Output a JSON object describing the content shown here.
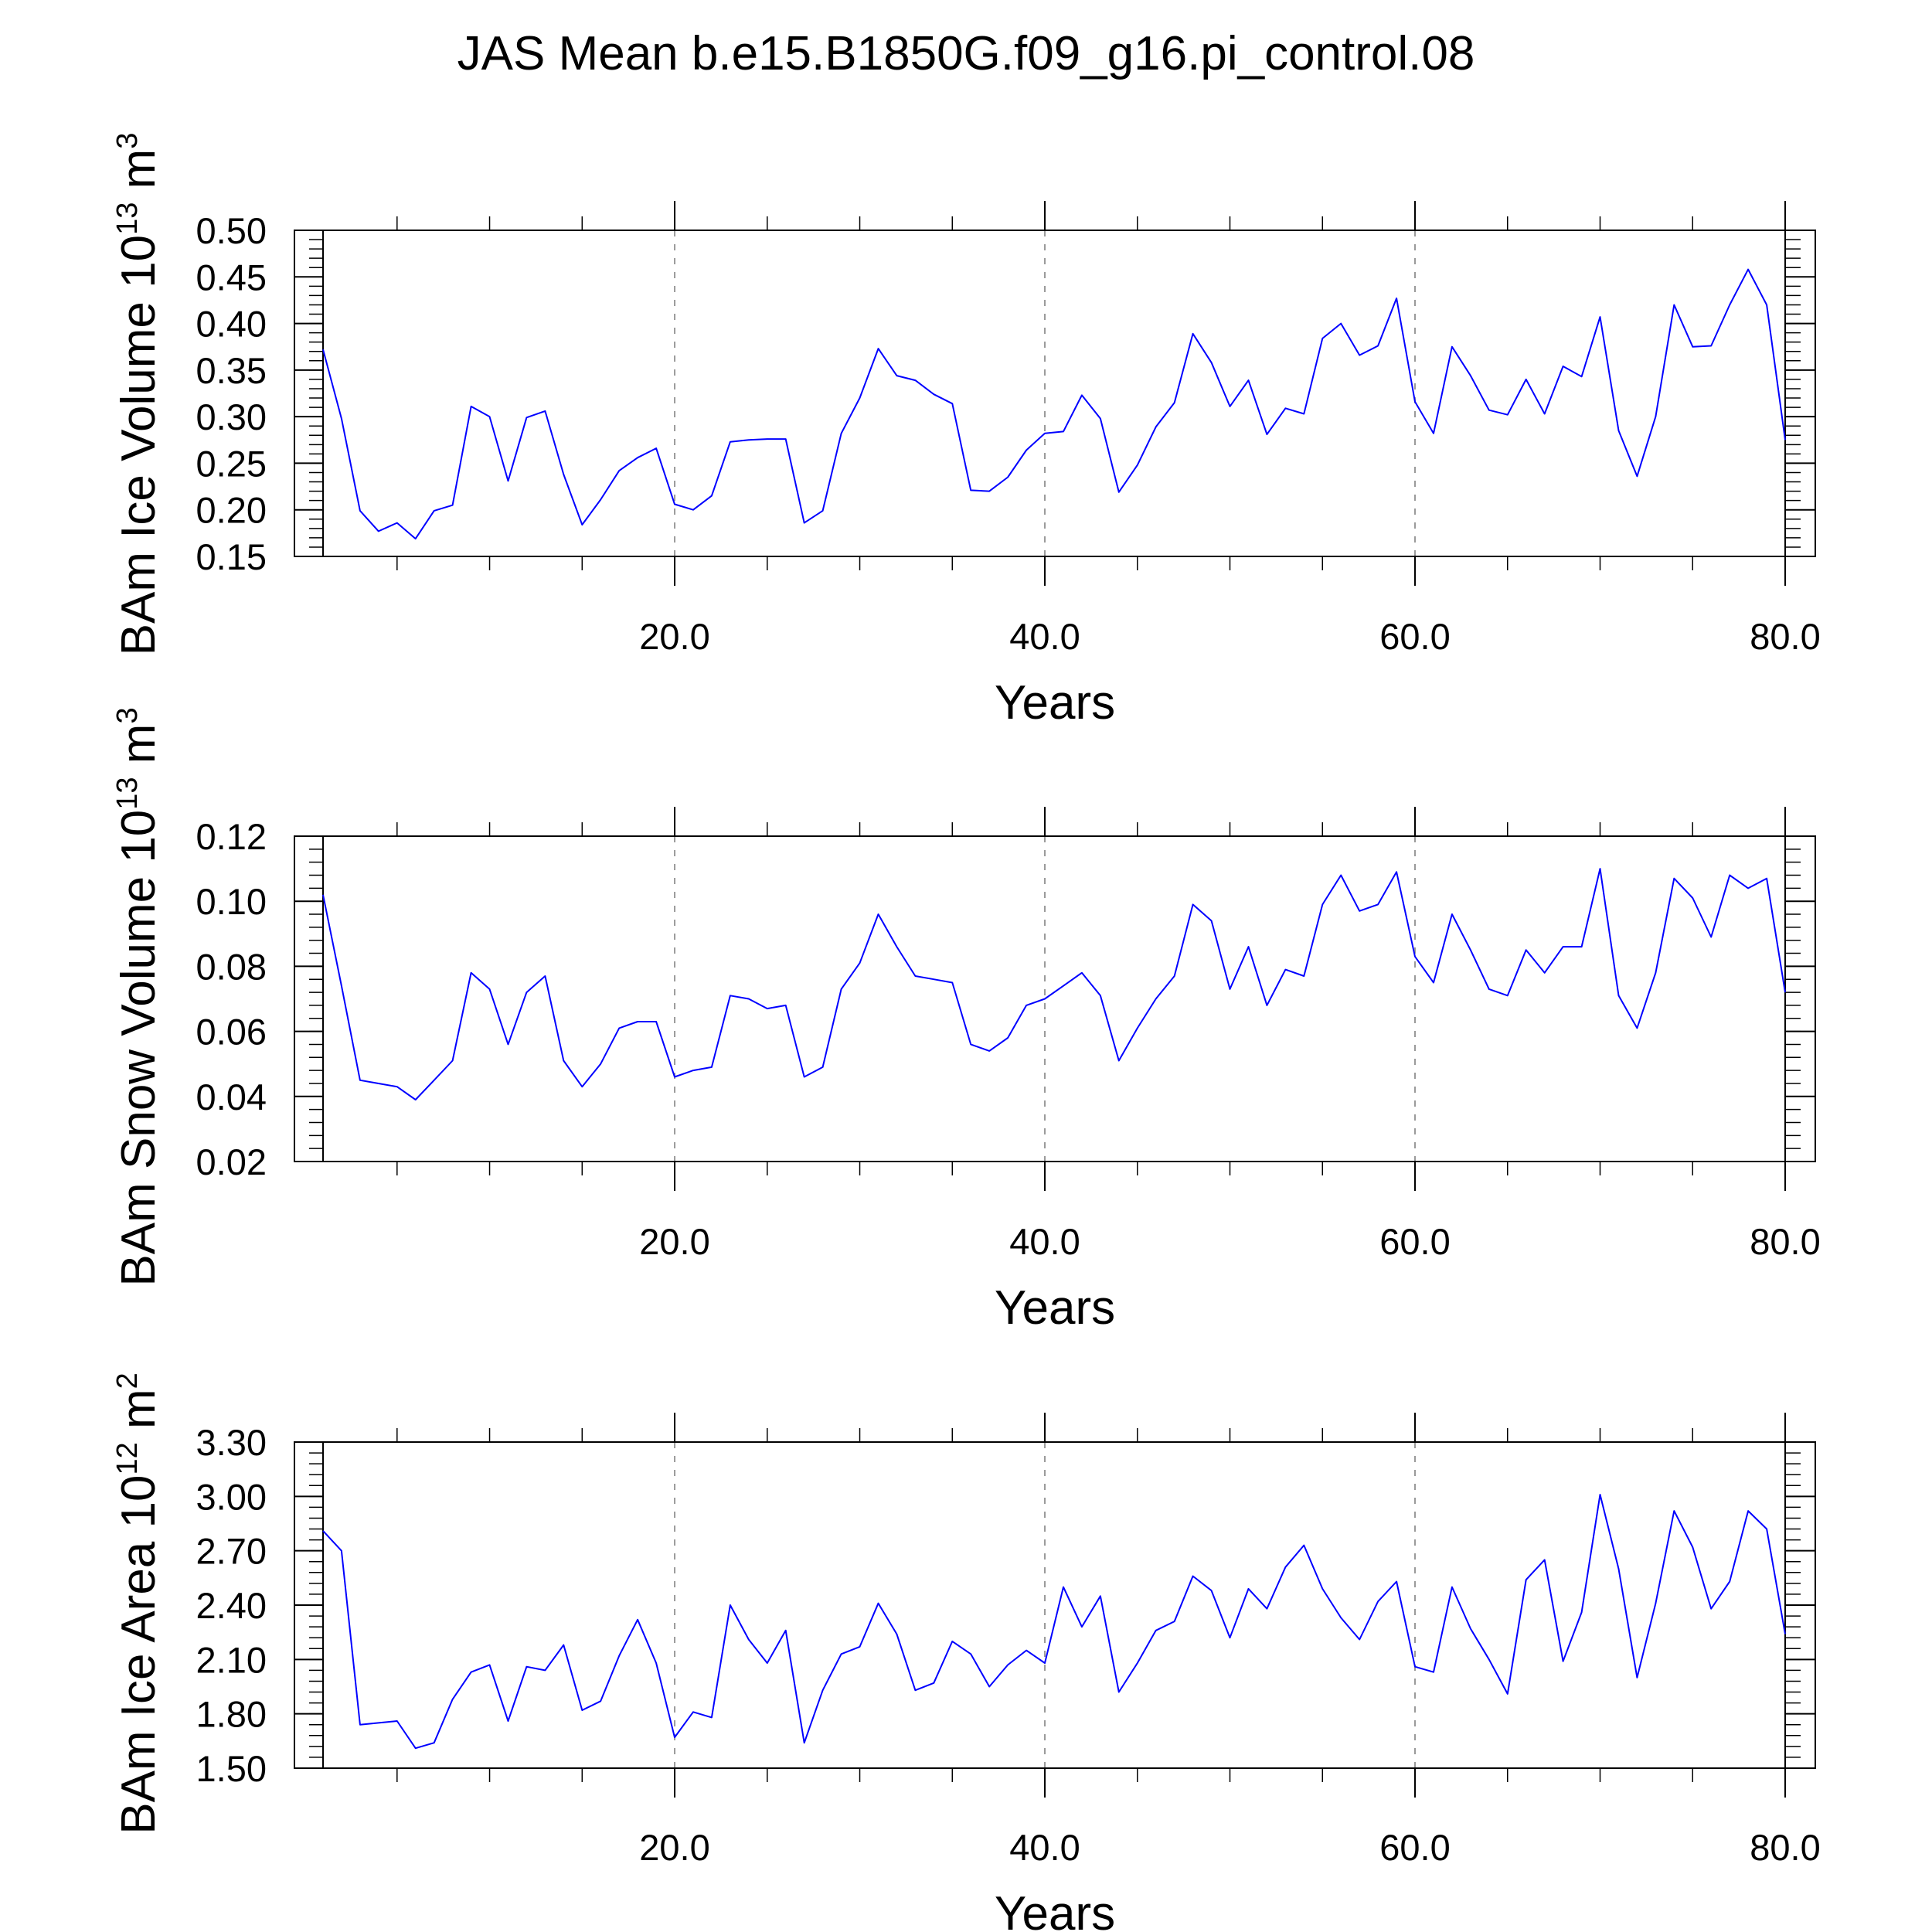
{
  "title": "JAS Mean b.e15.B1850G.f09_g16.pi_control.08",
  "colors": {
    "series": "#0000ff",
    "axis": "#000000",
    "grid": "#9a9a9a"
  },
  "chart_data": [
    {
      "type": "line",
      "ylabel": "BAm Ice Volume 10",
      "ylabel_exp": "13",
      "ylabel_unit": "m",
      "ylabel_unit_exp": "3",
      "xlabel": "Years",
      "xlim": [
        0,
        80
      ],
      "ylim": [
        0.15,
        0.5
      ],
      "ymajor": [
        0.15,
        0.2,
        0.25,
        0.3,
        0.35,
        0.4,
        0.45,
        0.5
      ],
      "ymajor_labels": [
        "0.15",
        "0.20",
        "0.25",
        "0.30",
        "0.35",
        "0.40",
        "0.45",
        "0.50"
      ],
      "yminor_step": 0.01,
      "xmajor": [
        20,
        40,
        60,
        80
      ],
      "xmajor_labels": [
        "20.0",
        "40.0",
        "60.0",
        "80.0"
      ],
      "xminor": [
        5,
        10,
        15,
        25,
        30,
        35,
        45,
        50,
        55,
        65,
        70,
        75
      ],
      "grid_x": [
        20,
        40,
        60
      ],
      "x": [
        1,
        2,
        3,
        4,
        5,
        6,
        7,
        8,
        9,
        10,
        11,
        12,
        13,
        14,
        15,
        16,
        17,
        18,
        19,
        20,
        21,
        22,
        23,
        24,
        25,
        26,
        27,
        28,
        29,
        30,
        31,
        32,
        33,
        34,
        35,
        36,
        37,
        38,
        39,
        40,
        41,
        42,
        43,
        44,
        45,
        46,
        47,
        48,
        49,
        50,
        51,
        52,
        53,
        54,
        55,
        56,
        57,
        58,
        59,
        60,
        61,
        62,
        63,
        64,
        65,
        66,
        67,
        68,
        69,
        70,
        71,
        72,
        73,
        74,
        75,
        76,
        77,
        78,
        79,
        80
      ],
      "values": [
        0.372,
        0.298,
        0.199,
        0.177,
        0.186,
        0.169,
        0.199,
        0.205,
        0.311,
        0.3,
        0.231,
        0.299,
        0.306,
        0.238,
        0.184,
        0.211,
        0.242,
        0.256,
        0.266,
        0.206,
        0.2,
        0.215,
        0.273,
        0.275,
        0.276,
        0.276,
        0.186,
        0.199,
        0.282,
        0.32,
        0.373,
        0.344,
        0.339,
        0.324,
        0.314,
        0.221,
        0.22,
        0.235,
        0.264,
        0.282,
        0.284,
        0.323,
        0.298,
        0.219,
        0.248,
        0.289,
        0.315,
        0.389,
        0.358,
        0.311,
        0.339,
        0.281,
        0.309,
        0.303,
        0.384,
        0.4,
        0.366,
        0.376,
        0.427,
        0.316,
        0.282,
        0.375,
        0.344,
        0.307,
        0.302,
        0.34,
        0.303,
        0.354,
        0.343,
        0.407,
        0.285,
        0.236,
        0.3,
        0.42,
        0.375,
        0.376,
        0.42,
        0.458,
        0.42,
        0.275
      ]
    },
    {
      "type": "line",
      "ylabel": "BAm Snow Volume 10",
      "ylabel_exp": "13",
      "ylabel_unit": "m",
      "ylabel_unit_exp": "3",
      "xlabel": "Years",
      "xlim": [
        0,
        80
      ],
      "ylim": [
        0.02,
        0.12
      ],
      "ymajor": [
        0.02,
        0.04,
        0.06,
        0.08,
        0.1,
        0.12
      ],
      "ymajor_labels": [
        "0.02",
        "0.04",
        "0.06",
        "0.08",
        "0.10",
        "0.12"
      ],
      "yminor_step": 0.004,
      "xmajor": [
        20,
        40,
        60,
        80
      ],
      "xmajor_labels": [
        "20.0",
        "40.0",
        "60.0",
        "80.0"
      ],
      "xminor": [
        5,
        10,
        15,
        25,
        30,
        35,
        45,
        50,
        55,
        65,
        70,
        75
      ],
      "grid_x": [
        20,
        40,
        60
      ],
      "x": [
        1,
        2,
        3,
        4,
        5,
        6,
        7,
        8,
        9,
        10,
        11,
        12,
        13,
        14,
        15,
        16,
        17,
        18,
        19,
        20,
        21,
        22,
        23,
        24,
        25,
        26,
        27,
        28,
        29,
        30,
        31,
        32,
        33,
        34,
        35,
        36,
        37,
        38,
        39,
        40,
        41,
        42,
        43,
        44,
        45,
        46,
        47,
        48,
        49,
        50,
        51,
        52,
        53,
        54,
        55,
        56,
        57,
        58,
        59,
        60,
        61,
        62,
        63,
        64,
        65,
        66,
        67,
        68,
        69,
        70,
        71,
        72,
        73,
        74,
        75,
        76,
        77,
        78,
        79,
        80
      ],
      "values": [
        0.102,
        0.074,
        0.045,
        0.044,
        0.043,
        0.039,
        0.045,
        0.051,
        0.078,
        0.073,
        0.056,
        0.072,
        0.077,
        0.051,
        0.043,
        0.05,
        0.061,
        0.063,
        0.063,
        0.046,
        0.048,
        0.049,
        0.071,
        0.07,
        0.067,
        0.068,
        0.046,
        0.049,
        0.073,
        0.081,
        0.096,
        0.086,
        0.077,
        0.076,
        0.075,
        0.056,
        0.054,
        0.058,
        0.068,
        0.07,
        0.074,
        0.078,
        0.071,
        0.051,
        0.061,
        0.07,
        0.077,
        0.099,
        0.094,
        0.073,
        0.086,
        0.068,
        0.079,
        0.077,
        0.099,
        0.108,
        0.097,
        0.099,
        0.109,
        0.083,
        0.075,
        0.096,
        0.085,
        0.073,
        0.071,
        0.085,
        0.078,
        0.086,
        0.086,
        0.11,
        0.071,
        0.061,
        0.078,
        0.107,
        0.101,
        0.089,
        0.108,
        0.104,
        0.107,
        0.072
      ]
    },
    {
      "type": "line",
      "ylabel": "BAm Ice Area 10",
      "ylabel_exp": "12",
      "ylabel_unit": "m",
      "ylabel_unit_exp": "2",
      "xlabel": "Years",
      "xlim": [
        0,
        80
      ],
      "ylim": [
        1.5,
        3.3
      ],
      "ymajor": [
        1.5,
        1.8,
        2.1,
        2.4,
        2.7,
        3.0,
        3.3
      ],
      "ymajor_labels": [
        "1.50",
        "1.80",
        "2.10",
        "2.40",
        "2.70",
        "3.00",
        "3.30"
      ],
      "yminor_step": 0.06,
      "xmajor": [
        20,
        40,
        60,
        80
      ],
      "xmajor_labels": [
        "20.0",
        "40.0",
        "60.0",
        "80.0"
      ],
      "xminor": [
        5,
        10,
        15,
        25,
        30,
        35,
        45,
        50,
        55,
        65,
        70,
        75
      ],
      "grid_x": [
        20,
        40,
        60
      ],
      "x": [
        1,
        2,
        3,
        4,
        5,
        6,
        7,
        8,
        9,
        10,
        11,
        12,
        13,
        14,
        15,
        16,
        17,
        18,
        19,
        20,
        21,
        22,
        23,
        24,
        25,
        26,
        27,
        28,
        29,
        30,
        31,
        32,
        33,
        34,
        35,
        36,
        37,
        38,
        39,
        40,
        41,
        42,
        43,
        44,
        45,
        46,
        47,
        48,
        49,
        50,
        51,
        52,
        53,
        54,
        55,
        56,
        57,
        58,
        59,
        60,
        61,
        62,
        63,
        64,
        65,
        66,
        67,
        68,
        69,
        70,
        71,
        72,
        73,
        74,
        75,
        76,
        77,
        78,
        79,
        80
      ],
      "values": [
        2.81,
        2.7,
        1.74,
        1.75,
        1.76,
        1.61,
        1.64,
        1.88,
        2.03,
        2.07,
        1.76,
        2.06,
        2.04,
        2.18,
        1.82,
        1.87,
        2.12,
        2.32,
        2.08,
        1.67,
        1.81,
        1.78,
        2.4,
        2.21,
        2.08,
        2.26,
        1.64,
        1.93,
        2.13,
        2.17,
        2.41,
        2.24,
        1.93,
        1.97,
        2.2,
        2.13,
        1.95,
        2.07,
        2.15,
        2.08,
        2.5,
        2.28,
        2.45,
        1.92,
        2.08,
        2.26,
        2.31,
        2.56,
        2.48,
        2.22,
        2.49,
        2.38,
        2.61,
        2.73,
        2.49,
        2.33,
        2.21,
        2.42,
        2.53,
        2.06,
        2.03,
        2.5,
        2.27,
        2.1,
        1.91,
        2.54,
        2.65,
        2.09,
        2.36,
        3.01,
        2.6,
        2.0,
        2.41,
        2.92,
        2.72,
        2.38,
        2.53,
        2.92,
        2.82,
        2.24
      ]
    }
  ]
}
